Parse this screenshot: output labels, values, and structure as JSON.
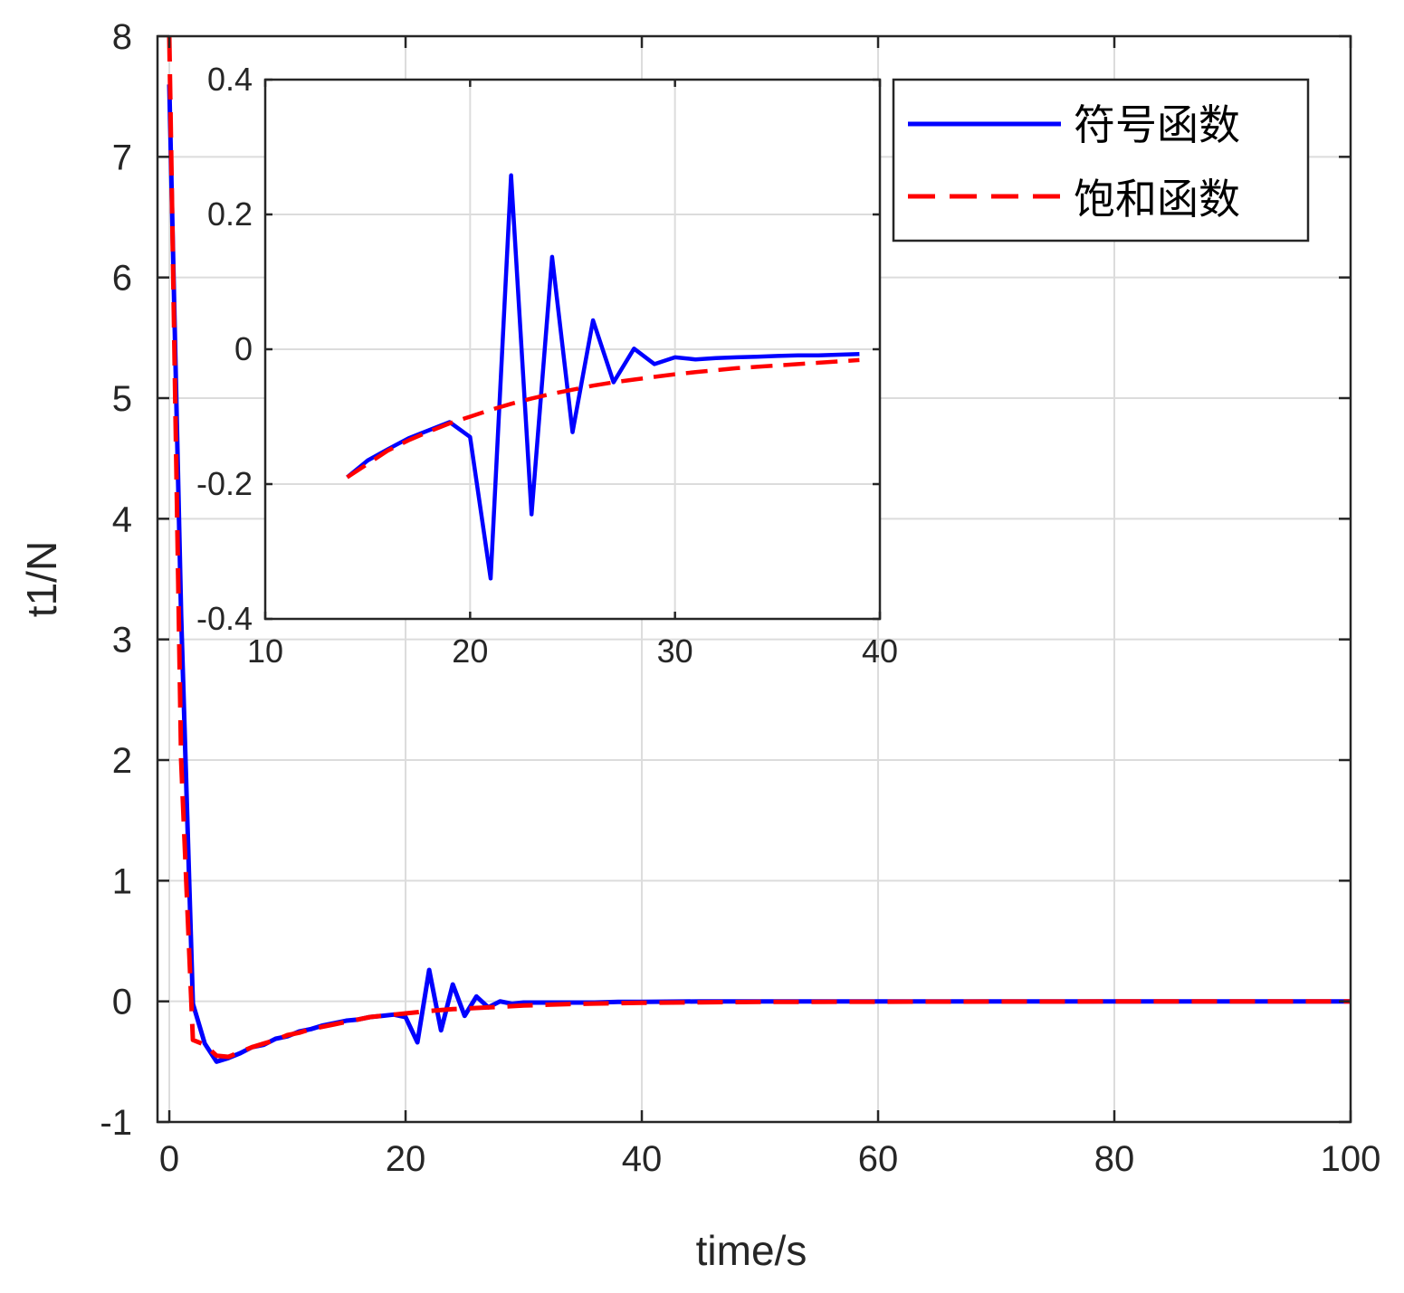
{
  "chart_data": [
    {
      "type": "line",
      "xlabel": "time/s",
      "ylabel": "t1/N",
      "xlim": [
        -1,
        100
      ],
      "ylim": [
        -1,
        8
      ],
      "xticks": [
        "0",
        "20",
        "40",
        "60",
        "80",
        "100"
      ],
      "yticks": [
        "-1",
        "0",
        "1",
        "2",
        "3",
        "4",
        "5",
        "6",
        "7",
        "8"
      ],
      "xtick_values": [
        0,
        20,
        40,
        60,
        80,
        100
      ],
      "ytick_values": [
        -1,
        0,
        1,
        2,
        3,
        4,
        5,
        6,
        7,
        8
      ],
      "grid": true,
      "legend_position": "top-right",
      "series": [
        {
          "name": "符号函数",
          "color": "#0000ff",
          "style": "solid",
          "x": [
            0,
            1,
            2,
            3,
            4,
            5,
            6,
            7,
            8,
            9,
            10,
            11,
            12,
            13,
            14,
            15,
            16,
            17,
            18,
            19,
            20,
            21,
            22,
            23,
            24,
            25,
            26,
            27,
            28,
            29,
            30,
            31,
            32,
            34,
            36,
            38,
            40,
            45,
            50,
            60,
            70,
            80,
            90,
            100
          ],
          "y": [
            7.6,
            3.2,
            -0.02,
            -0.35,
            -0.5,
            -0.47,
            -0.43,
            -0.38,
            -0.36,
            -0.31,
            -0.29,
            -0.25,
            -0.23,
            -0.2,
            -0.18,
            -0.16,
            -0.15,
            -0.13,
            -0.12,
            -0.11,
            -0.13,
            -0.34,
            0.26,
            -0.24,
            0.14,
            -0.12,
            0.04,
            -0.05,
            0.0,
            -0.02,
            -0.01,
            -0.01,
            -0.01,
            -0.01,
            -0.01,
            -0.005,
            -0.005,
            0.0,
            0.0,
            0.0,
            0.0,
            0.0,
            0.0,
            0.0
          ]
        },
        {
          "name": "饱和函数",
          "color": "#ff0000",
          "style": "dashed",
          "x": [
            0,
            1,
            2,
            3,
            4,
            5,
            6,
            7,
            8,
            9,
            10,
            11,
            12,
            13,
            14,
            15,
            16,
            17,
            18,
            19,
            20,
            22,
            24,
            26,
            28,
            30,
            32,
            34,
            36,
            38,
            40,
            45,
            50,
            60,
            70,
            80,
            90,
            100
          ],
          "y": [
            8.0,
            2.0,
            -0.32,
            -0.36,
            -0.45,
            -0.46,
            -0.42,
            -0.38,
            -0.35,
            -0.32,
            -0.28,
            -0.26,
            -0.23,
            -0.21,
            -0.19,
            -0.17,
            -0.15,
            -0.13,
            -0.12,
            -0.11,
            -0.1,
            -0.08,
            -0.065,
            -0.055,
            -0.045,
            -0.035,
            -0.028,
            -0.022,
            -0.018,
            -0.015,
            -0.012,
            -0.008,
            -0.005,
            -0.003,
            -0.002,
            -0.001,
            0.0,
            0.0
          ]
        }
      ]
    },
    {
      "type": "line",
      "xlabel": "",
      "ylabel": "",
      "xlim": [
        10,
        40
      ],
      "ylim": [
        -0.4,
        0.4
      ],
      "xticks": [
        "10",
        "20",
        "30",
        "40"
      ],
      "yticks": [
        "-0.4",
        "-0.2",
        "0",
        "0.2",
        "0.4"
      ],
      "xtick_values": [
        10,
        20,
        30,
        40
      ],
      "ytick_values": [
        -0.4,
        -0.2,
        0,
        0.2,
        0.4
      ],
      "grid": true,
      "series": [
        {
          "name": "符号函数",
          "color": "#0000ff",
          "style": "solid",
          "x": [
            14,
            15,
            16,
            17,
            18,
            19,
            20,
            21,
            22,
            23,
            24,
            25,
            26,
            27,
            28,
            29,
            30,
            31,
            32,
            33,
            34,
            35,
            36,
            37,
            38,
            39
          ],
          "y": [
            -0.19,
            -0.165,
            -0.148,
            -0.132,
            -0.12,
            -0.108,
            -0.13,
            -0.34,
            0.258,
            -0.245,
            0.137,
            -0.123,
            0.043,
            -0.049,
            0.001,
            -0.022,
            -0.012,
            -0.015,
            -0.013,
            -0.012,
            -0.011,
            -0.01,
            -0.009,
            -0.009,
            -0.008,
            -0.007
          ]
        },
        {
          "name": "饱和函数",
          "color": "#ff0000",
          "style": "dashed",
          "x": [
            14,
            15,
            16,
            17,
            18,
            19,
            20,
            21,
            22,
            23,
            24,
            25,
            26,
            27,
            28,
            29,
            30,
            31,
            32,
            33,
            34,
            35,
            36,
            37,
            38,
            39
          ],
          "y": [
            -0.19,
            -0.17,
            -0.15,
            -0.135,
            -0.122,
            -0.11,
            -0.1,
            -0.09,
            -0.081,
            -0.073,
            -0.066,
            -0.06,
            -0.054,
            -0.049,
            -0.045,
            -0.041,
            -0.037,
            -0.034,
            -0.031,
            -0.028,
            -0.026,
            -0.024,
            -0.022,
            -0.02,
            -0.018,
            -0.016
          ]
        }
      ]
    }
  ],
  "legend": {
    "items": [
      "符号函数",
      "饱和函数"
    ]
  }
}
